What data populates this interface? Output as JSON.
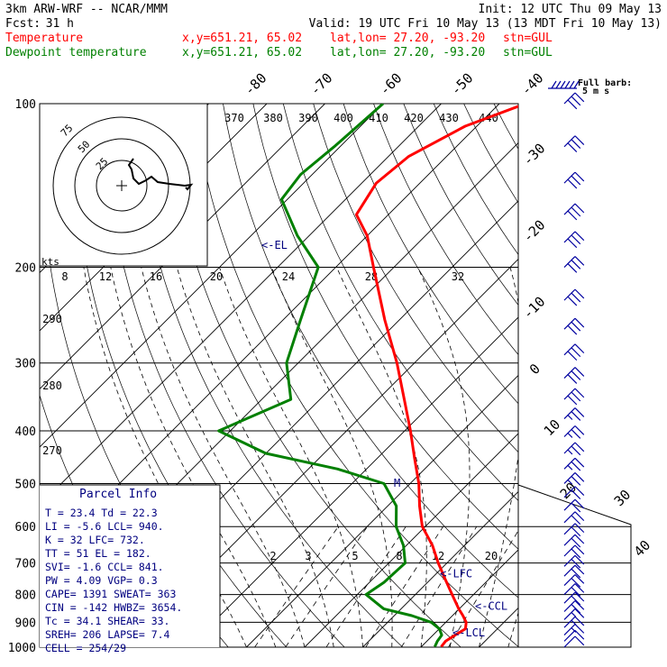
{
  "header": {
    "model": "3km ARW-WRF -- NCAR/MMM",
    "init": "Init: 12 UTC Thu 09 May 13",
    "fcst_label": "Fcst:",
    "fcst_value": "31 h",
    "valid": "Valid: 19 UTC Fri 10 May 13 (13 MDT Fri 10 May 13)",
    "rows": [
      {
        "name": "Temperature",
        "xy": "x,y=651.21, 65.02",
        "latlon": "lat,lon= 27.20, -93.20",
        "stn": "stn=GUL",
        "color": "#ff0000"
      },
      {
        "name": "Dewpoint temperature",
        "xy": "x,y=651.21, 65.02",
        "latlon": "lat,lon= 27.20, -93.20",
        "stn": "stn=GUL",
        "color": "#008000"
      }
    ]
  },
  "colors": {
    "temperature": "#ff0000",
    "dewpoint": "#008000",
    "barbs": "#0000a0",
    "labels": "#000080"
  },
  "chart_data": {
    "type": "line",
    "title": "",
    "ylabel": "",
    "pressure_ticks": [
      100,
      200,
      300,
      400,
      500,
      600,
      700,
      800,
      900,
      1000
    ],
    "ylim": [
      1000,
      100
    ],
    "isotherm_labels": [
      "-80",
      "-70",
      "-60",
      "-50",
      "-40",
      "-30",
      "-20",
      "-10",
      "0",
      "10",
      "20",
      "30",
      "40"
    ],
    "theta_labels": [
      "370",
      "380",
      "390",
      "400",
      "410",
      "420",
      "430",
      "440"
    ],
    "theta_low_labels": [
      "290",
      "280",
      "270"
    ],
    "mixing_ratio_labels": [
      "2",
      "3",
      "5",
      "8",
      "12",
      "20"
    ],
    "theta_e_labels": [
      "8",
      "12",
      "16",
      "20",
      "24",
      "28",
      "32"
    ],
    "series": [
      {
        "name": "Temperature",
        "values": [
          [
            998,
            23.4
          ],
          [
            975,
            23.2
          ],
          [
            950,
            23.8
          ],
          [
            925,
            24.5
          ],
          [
            900,
            23.5
          ],
          [
            875,
            21.8
          ],
          [
            850,
            19.9
          ],
          [
            800,
            16.3
          ],
          [
            750,
            12.5
          ],
          [
            700,
            8.5
          ],
          [
            650,
            4.5
          ],
          [
            600,
            -0.5
          ],
          [
            550,
            -4.5
          ],
          [
            500,
            -8.5
          ],
          [
            450,
            -13.5
          ],
          [
            400,
            -19.0
          ],
          [
            350,
            -25.5
          ],
          [
            300,
            -33.0
          ],
          [
            250,
            -42.5
          ],
          [
            200,
            -53.5
          ],
          [
            175,
            -60.0
          ],
          [
            160,
            -65.5
          ],
          [
            140,
            -67.5
          ],
          [
            125,
            -66.5
          ],
          [
            110,
            -62.0
          ],
          [
            100,
            -55.5
          ]
        ]
      },
      {
        "name": "Dewpoint temperature",
        "values": [
          [
            998,
            22.3
          ],
          [
            975,
            21.8
          ],
          [
            950,
            21.5
          ],
          [
            925,
            20.0
          ],
          [
            900,
            17.5
          ],
          [
            875,
            13.0
          ],
          [
            850,
            7.0
          ],
          [
            800,
            1.5
          ],
          [
            760,
            2.5
          ],
          [
            700,
            2.8
          ],
          [
            650,
            -0.5
          ],
          [
            600,
            -5.0
          ],
          [
            550,
            -8.5
          ],
          [
            500,
            -14.5
          ],
          [
            470,
            -25.0
          ],
          [
            440,
            -40.0
          ],
          [
            400,
            -52.0
          ],
          [
            350,
            -45.0
          ],
          [
            300,
            -52.0
          ],
          [
            250,
            -57.0
          ],
          [
            200,
            -63.0
          ],
          [
            175,
            -72.0
          ],
          [
            150,
            -81.0
          ],
          [
            135,
            -82.0
          ],
          [
            120,
            -81.0
          ],
          [
            100,
            -80.0
          ]
        ]
      }
    ],
    "levels_marked": [
      {
        "p": 182,
        "label": "<-EL"
      },
      {
        "p": 732,
        "label": "<-LFC"
      },
      {
        "p": 841,
        "label": "<-CCL"
      },
      {
        "p": 940,
        "label": "<-LCL"
      }
    ],
    "wind_barbs_knots": [
      {
        "p": 100,
        "spd": 30
      },
      {
        "p": 120,
        "spd": 30
      },
      {
        "p": 140,
        "spd": 30
      },
      {
        "p": 160,
        "spd": 30
      },
      {
        "p": 180,
        "spd": 30
      },
      {
        "p": 200,
        "spd": 30
      },
      {
        "p": 230,
        "spd": 30
      },
      {
        "p": 260,
        "spd": 30
      },
      {
        "p": 290,
        "spd": 30
      },
      {
        "p": 320,
        "spd": 30
      },
      {
        "p": 350,
        "spd": 30
      },
      {
        "p": 380,
        "spd": 25
      },
      {
        "p": 410,
        "spd": 25
      },
      {
        "p": 440,
        "spd": 25
      },
      {
        "p": 470,
        "spd": 25
      },
      {
        "p": 500,
        "spd": 25
      },
      {
        "p": 530,
        "spd": 20
      },
      {
        "p": 560,
        "spd": 20
      },
      {
        "p": 590,
        "spd": 20
      },
      {
        "p": 620,
        "spd": 20
      },
      {
        "p": 650,
        "spd": 20
      },
      {
        "p": 680,
        "spd": 20
      },
      {
        "p": 710,
        "spd": 20
      },
      {
        "p": 740,
        "spd": 20
      },
      {
        "p": 770,
        "spd": 20
      },
      {
        "p": 800,
        "spd": 20
      },
      {
        "p": 830,
        "spd": 20
      },
      {
        "p": 860,
        "spd": 20
      },
      {
        "p": 890,
        "spd": 15
      },
      {
        "p": 920,
        "spd": 15
      },
      {
        "p": 950,
        "spd": 15
      },
      {
        "p": 975,
        "spd": 10
      },
      {
        "p": 1000,
        "spd": 10
      }
    ],
    "barb_legend": "Full barb:",
    "barb_legend_units": "5 m s",
    "hodograph": {
      "units": "kts",
      "ring_labels": [
        "25",
        "50",
        "75"
      ]
    }
  },
  "parcel_info": {
    "title": "Parcel Info",
    "rows": [
      "T  =   23.4  Td =  22.3",
      "LI =   -5.6  LCL=  940.",
      "K  =     32  LFC=  732.",
      "TT =     51  EL =  182.",
      "SVI=   -1.6  CCL=  841.",
      "PW =   4.09  VGP=   0.3",
      "CAPE=  1391  SWEAT=  363",
      "CIN =  -142  HWBZ= 3654.",
      "Tc  =  34.1  SHEAR=  33.",
      "SREH=   206  LAPSE=  7.4",
      "CELL = 254/29"
    ]
  }
}
